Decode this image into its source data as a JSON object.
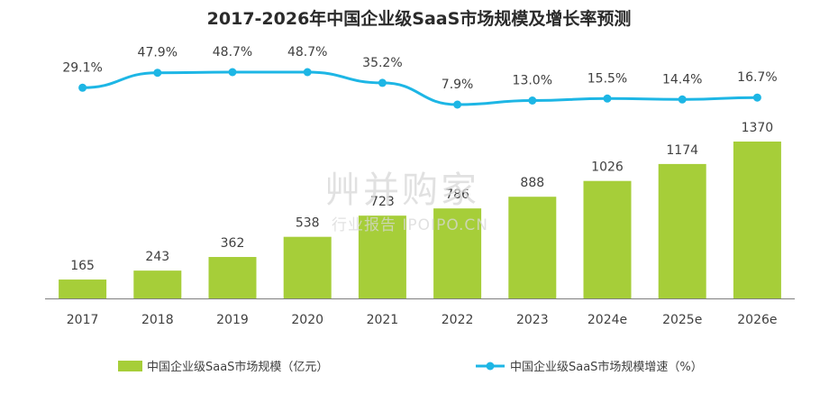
{
  "chart_data": {
    "type": "bar",
    "title": "2017-2026年中国企业级SaaS市场规模及增长率预测",
    "categories": [
      "2017",
      "2018",
      "2019",
      "2020",
      "2021",
      "2022",
      "2023",
      "2024e",
      "2025e",
      "2026e"
    ],
    "series": [
      {
        "name": "中国企业级SaaS市场规模（亿元）",
        "type": "bar",
        "values": [
          165,
          243,
          362,
          538,
          723,
          786,
          888,
          1026,
          1174,
          1370
        ],
        "labels": [
          "165",
          "243",
          "362",
          "538",
          "723",
          "786",
          "888",
          "1026",
          "1174",
          "1370"
        ]
      },
      {
        "name": "中国企业级SaaS市场规模增速（%）",
        "type": "line",
        "values": [
          29.1,
          47.9,
          48.7,
          48.7,
          35.2,
          7.9,
          13.0,
          15.5,
          14.4,
          16.7
        ],
        "labels": [
          "29.1%",
          "47.9%",
          "48.7%",
          "48.7%",
          "35.2%",
          "7.9%",
          "13.0%",
          "15.5%",
          "14.4%",
          "16.7%"
        ]
      }
    ],
    "legend_position": "bottom",
    "grid": false,
    "colors": {
      "bar": "#A6CE39",
      "line": "#1DB6E5",
      "text": "#404040",
      "axis": "#7f7f7f"
    }
  },
  "watermark": {
    "main": "艸并购家",
    "sub": "行业报告 IPOIPO.CN"
  }
}
